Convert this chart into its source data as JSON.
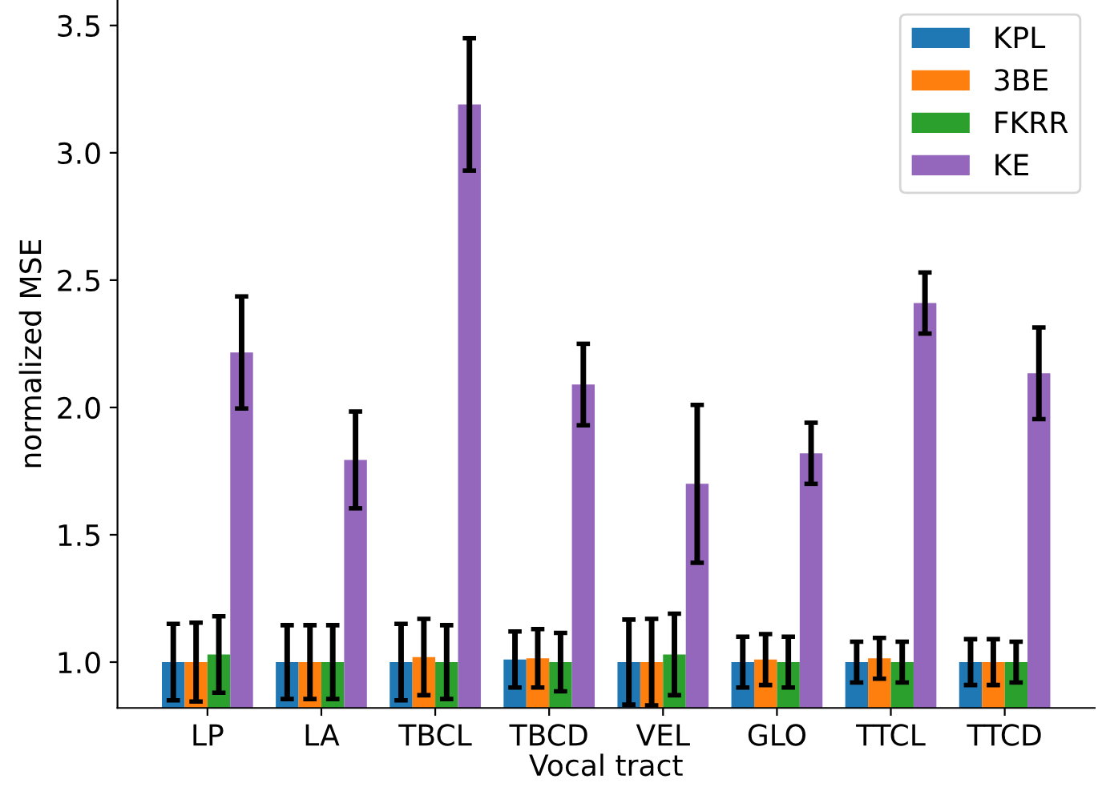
{
  "chart_data": {
    "type": "bar",
    "xlabel": "Vocal tract",
    "ylabel": "normalized MSE",
    "categories": [
      "LP",
      "LA",
      "TBCL",
      "TBCD",
      "VEL",
      "GLO",
      "TTCL",
      "TTCD"
    ],
    "series": [
      {
        "name": "KPL",
        "color": "#1f77b4",
        "values": [
          1.0,
          1.0,
          1.0,
          1.01,
          1.0,
          1.0,
          1.0,
          1.0
        ],
        "errors": [
          0.15,
          0.145,
          0.15,
          0.11,
          0.167,
          0.1,
          0.08,
          0.09
        ]
      },
      {
        "name": "3BE",
        "color": "#ff7f0e",
        "values": [
          1.0,
          1.0,
          1.02,
          1.015,
          1.0,
          1.01,
          1.015,
          1.0
        ],
        "errors": [
          0.155,
          0.145,
          0.15,
          0.115,
          0.17,
          0.1,
          0.08,
          0.09
        ]
      },
      {
        "name": "FKRR",
        "color": "#2ca02c",
        "values": [
          1.03,
          1.0,
          1.0,
          1.0,
          1.03,
          1.0,
          1.0,
          1.0
        ],
        "errors": [
          0.15,
          0.145,
          0.145,
          0.115,
          0.16,
          0.1,
          0.08,
          0.08
        ]
      },
      {
        "name": "KE",
        "color": "#9467bd",
        "values": [
          2.216,
          1.794,
          3.19,
          2.09,
          1.7,
          1.82,
          2.41,
          2.134
        ],
        "errors": [
          0.22,
          0.19,
          0.26,
          0.16,
          0.31,
          0.12,
          0.12,
          0.18
        ]
      }
    ],
    "ylim": [
      0.82,
      3.6
    ],
    "yticks": [
      {
        "value": 1.0,
        "label": "1.0"
      },
      {
        "value": 1.5,
        "label": "1.5"
      },
      {
        "value": 2.0,
        "label": "2.0"
      },
      {
        "value": 2.5,
        "label": "2.5"
      },
      {
        "value": 3.0,
        "label": "3.0"
      },
      {
        "value": 3.5,
        "label": "3.5"
      }
    ],
    "grid": false,
    "legend": "top right"
  }
}
